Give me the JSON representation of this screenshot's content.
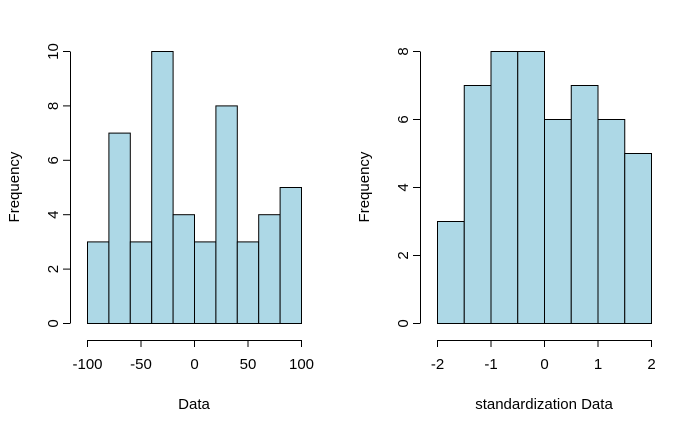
{
  "colors": {
    "bar_fill": "#ADD8E6",
    "bar_stroke": "#000000",
    "axis": "#000000",
    "background": "#FFFFFF"
  },
  "chart_data": [
    {
      "type": "bar",
      "subtype": "histogram",
      "title": "",
      "xlabel": "Data",
      "ylabel": "Frequency",
      "bin_edges": [
        -100,
        -80,
        -60,
        -40,
        -20,
        0,
        20,
        40,
        60,
        80,
        100
      ],
      "values": [
        3,
        7,
        3,
        10,
        4,
        3,
        8,
        3,
        4,
        5
      ],
      "xlim": [
        -100,
        100
      ],
      "ylim": [
        0,
        10
      ],
      "xticks": [
        -100,
        -50,
        0,
        50,
        100
      ],
      "xtick_labels": [
        "-100",
        "-50",
        "0",
        "50",
        "100"
      ],
      "yticks": [
        0,
        2,
        4,
        6,
        8,
        10
      ],
      "ytick_labels": [
        "0",
        "2",
        "4",
        "6",
        "8",
        "10"
      ],
      "grid": false,
      "legend": "none"
    },
    {
      "type": "bar",
      "subtype": "histogram",
      "title": "",
      "xlabel": "standardization Data",
      "ylabel": "Frequency",
      "bin_edges": [
        -2,
        -1.5,
        -1,
        -0.5,
        0,
        0.5,
        1,
        1.5,
        2
      ],
      "values": [
        3,
        7,
        8,
        8,
        6,
        7,
        6,
        5
      ],
      "xlim": [
        -2,
        2
      ],
      "ylim": [
        0,
        8
      ],
      "xticks": [
        -2,
        -1,
        0,
        1,
        2
      ],
      "xtick_labels": [
        "-2",
        "-1",
        "0",
        "1",
        "2"
      ],
      "yticks": [
        0,
        2,
        4,
        6,
        8
      ],
      "ytick_labels": [
        "0",
        "2",
        "4",
        "6",
        "8"
      ],
      "grid": false,
      "legend": "none"
    }
  ]
}
